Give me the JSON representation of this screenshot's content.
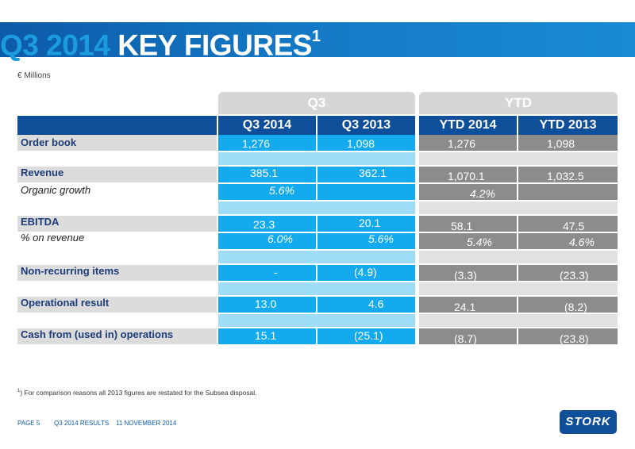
{
  "header": {
    "title_q": "Q3 2014",
    "title_rest": "KEY FIGURES",
    "title_sup": "1"
  },
  "unit": "€ Millions",
  "groups": {
    "q3": "Q3",
    "ytd": "YTD"
  },
  "columns": [
    "Q3 2014",
    "Q3 2013",
    "YTD 2014",
    "YTD 2013"
  ],
  "rows": {
    "order_book": {
      "label": "Order book",
      "values": [
        "1,276",
        "1,098",
        "1,276",
        "1,098"
      ]
    },
    "revenue": {
      "label": "Revenue",
      "values": [
        "385.1",
        "362.1",
        "1,070.1",
        "1,032.5"
      ]
    },
    "organic_growth": {
      "label": "Organic growth",
      "values": [
        "5.6%",
        "4.2%"
      ]
    },
    "ebitda": {
      "label": "EBITDA",
      "values": [
        "23.3",
        "20.1",
        "58.1",
        "47.5"
      ]
    },
    "pct_revenue": {
      "label": "% on revenue",
      "values": [
        "6.0%",
        "5.6%",
        "5.4%",
        "4.6%"
      ]
    },
    "non_recurring": {
      "label": "Non-recurring items",
      "values": [
        "-",
        "(4.9)",
        "(3.3)",
        "(23.3)"
      ]
    },
    "operational": {
      "label": "Operational result",
      "values": [
        "13.0",
        "4.6",
        "24.1",
        "(8.2)"
      ]
    },
    "cash": {
      "label": "Cash from (used in) operations",
      "values": [
        "15.1",
        "(25.1)",
        "(8.7)",
        "(23.8)"
      ]
    }
  },
  "footnote": {
    "sup": "1",
    "text": ") For comparison reasons all 2013 figures are restated for the Subsea disposal."
  },
  "footer": {
    "page": "PAGE 5",
    "doc": "Q3 2014 RESULTS",
    "date": "11 NOVEMBER 2014",
    "logo": "STORK"
  },
  "colors": {
    "navy": "#0f4f9a",
    "bright_blue": "#14aaee",
    "light_blue": "#9fdcf6",
    "gray": "#8c8c8c",
    "light_gray": "#dcdcdc"
  }
}
